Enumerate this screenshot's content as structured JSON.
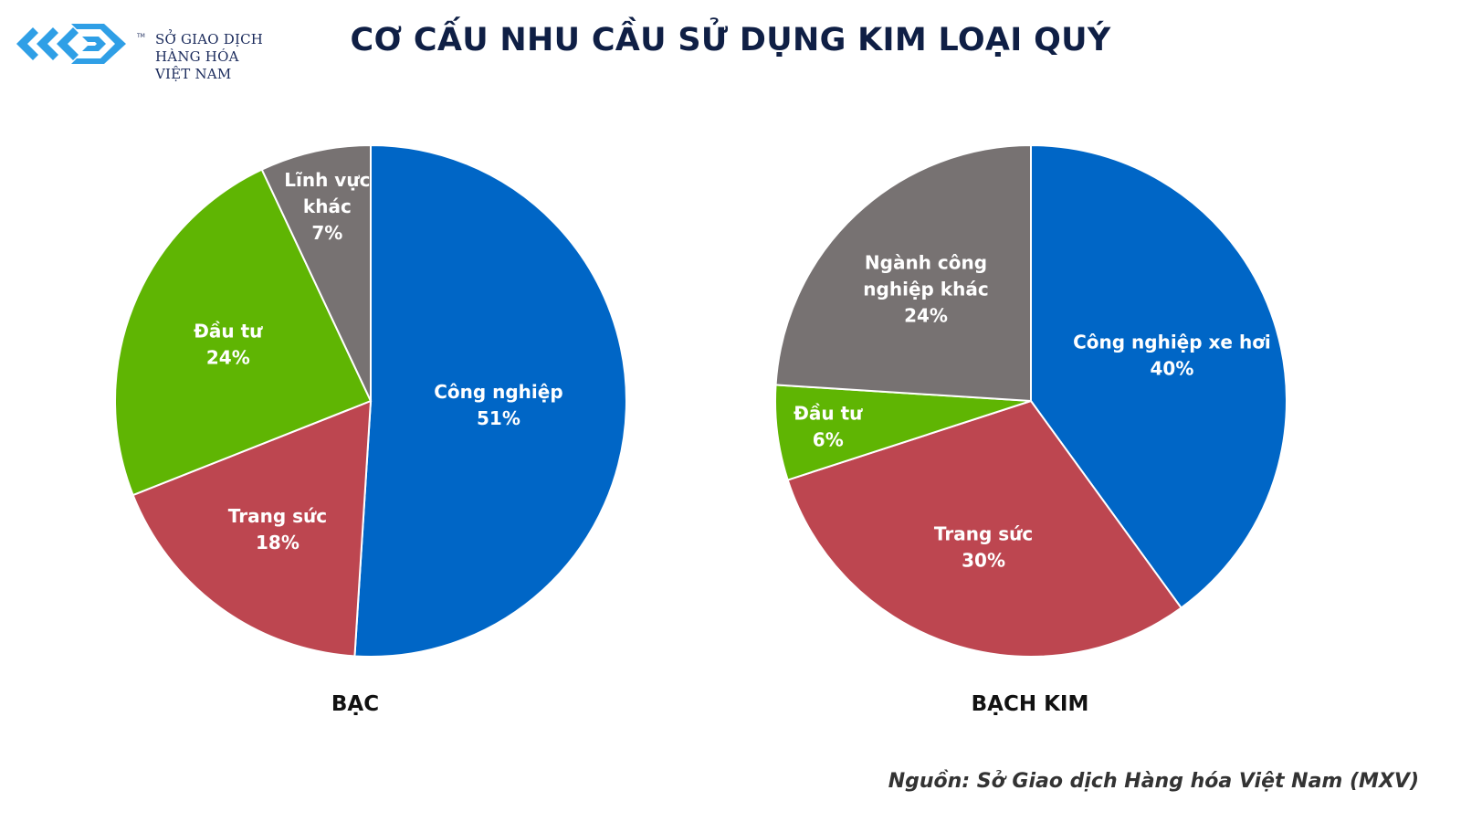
{
  "brand": {
    "logo_lines": [
      "SỞ GIAO DỊCH",
      "HÀNG HÓA",
      "VIỆT NAM"
    ],
    "tm": "TM",
    "logo_color": "#2f9fe6"
  },
  "title": "CƠ CẤU NHU CẦU SỬ DỤNG KIM LOẠI QUÝ",
  "source": "Nguồn: Sở Giao dịch Hàng hóa Việt Nam (MXV)",
  "chart_data": [
    {
      "type": "pie",
      "title": "BẠC",
      "slices": [
        {
          "label": [
            "Công nghiệp"
          ],
          "value": 51,
          "value_label": "51%",
          "color": "#0066c6"
        },
        {
          "label": [
            "Trang sức"
          ],
          "value": 18,
          "value_label": "18%",
          "color": "#bd4650"
        },
        {
          "label": [
            "Đầu tư"
          ],
          "value": 24,
          "value_label": "24%",
          "color": "#5fb503"
        },
        {
          "label": [
            "Lĩnh vực",
            "khác"
          ],
          "value": 7,
          "value_label": "7%",
          "color": "#777272"
        }
      ]
    },
    {
      "type": "pie",
      "title": "BẠCH KIM",
      "slices": [
        {
          "label": [
            "Công nghiệp xe hơi"
          ],
          "value": 40,
          "value_label": "40%",
          "color": "#0066c6"
        },
        {
          "label": [
            "Trang sức"
          ],
          "value": 30,
          "value_label": "30%",
          "color": "#bd4650"
        },
        {
          "label": [
            "Đầu tư"
          ],
          "value": 6,
          "value_label": "6%",
          "color": "#5fb503"
        },
        {
          "label": [
            "Ngành công",
            "nghiệp khác"
          ],
          "value": 24,
          "value_label": "24%",
          "color": "#777272"
        }
      ]
    }
  ]
}
